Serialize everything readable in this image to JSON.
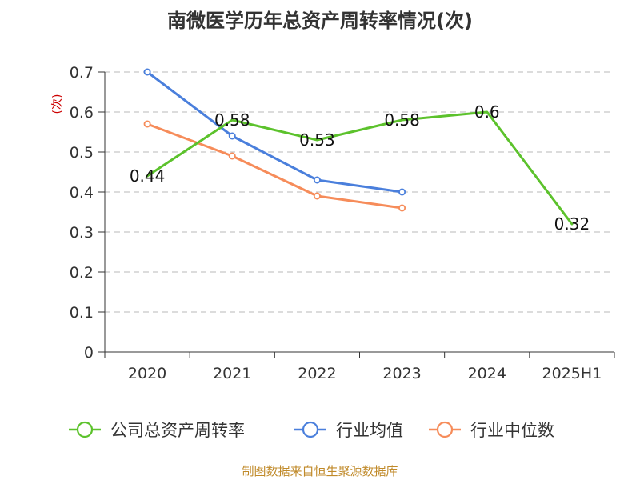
{
  "title": "南微医学历年总资产周转率情况(次)",
  "y_axis_unit": "(次)",
  "source": "制图数据来自恒生聚源数据库",
  "colors": {
    "company": "#5cc22c",
    "industry_avg": "#4a7fdc",
    "industry_median": "#f68c5a",
    "grid": "#c8c8c8",
    "axis": "#333333",
    "source": "#c08a2a"
  },
  "chart_data": {
    "type": "line",
    "title": "南微医学历年总资产周转率情况(次)",
    "ylabel": "(次)",
    "xlabel": "",
    "categories": [
      "2020",
      "2021",
      "2022",
      "2023",
      "2024",
      "2025H1"
    ],
    "ylim": [
      0,
      0.7
    ],
    "yticks": [
      0,
      0.1,
      0.2,
      0.3,
      0.4,
      0.5,
      0.6,
      0.7
    ],
    "ytick_labels": [
      "0",
      "0.1",
      "0.2",
      "0.3",
      "0.4",
      "0.5",
      "0.6",
      "0.7"
    ],
    "grid": true,
    "legend_position": "bottom",
    "series": [
      {
        "key": "company",
        "name": "公司总资产周转率",
        "values": [
          0.44,
          0.58,
          0.53,
          0.58,
          0.6,
          0.32
        ],
        "labels": [
          "0.44",
          "0.58",
          "0.53",
          "0.58",
          "0.6",
          "0.32"
        ],
        "markers": false
      },
      {
        "key": "industry_avg",
        "name": "行业均值",
        "values": [
          0.7,
          0.54,
          0.43,
          0.4,
          null,
          null
        ],
        "markers": true
      },
      {
        "key": "industry_median",
        "name": "行业中位数",
        "values": [
          0.57,
          0.49,
          0.39,
          0.36,
          null,
          null
        ],
        "markers": true
      }
    ]
  }
}
